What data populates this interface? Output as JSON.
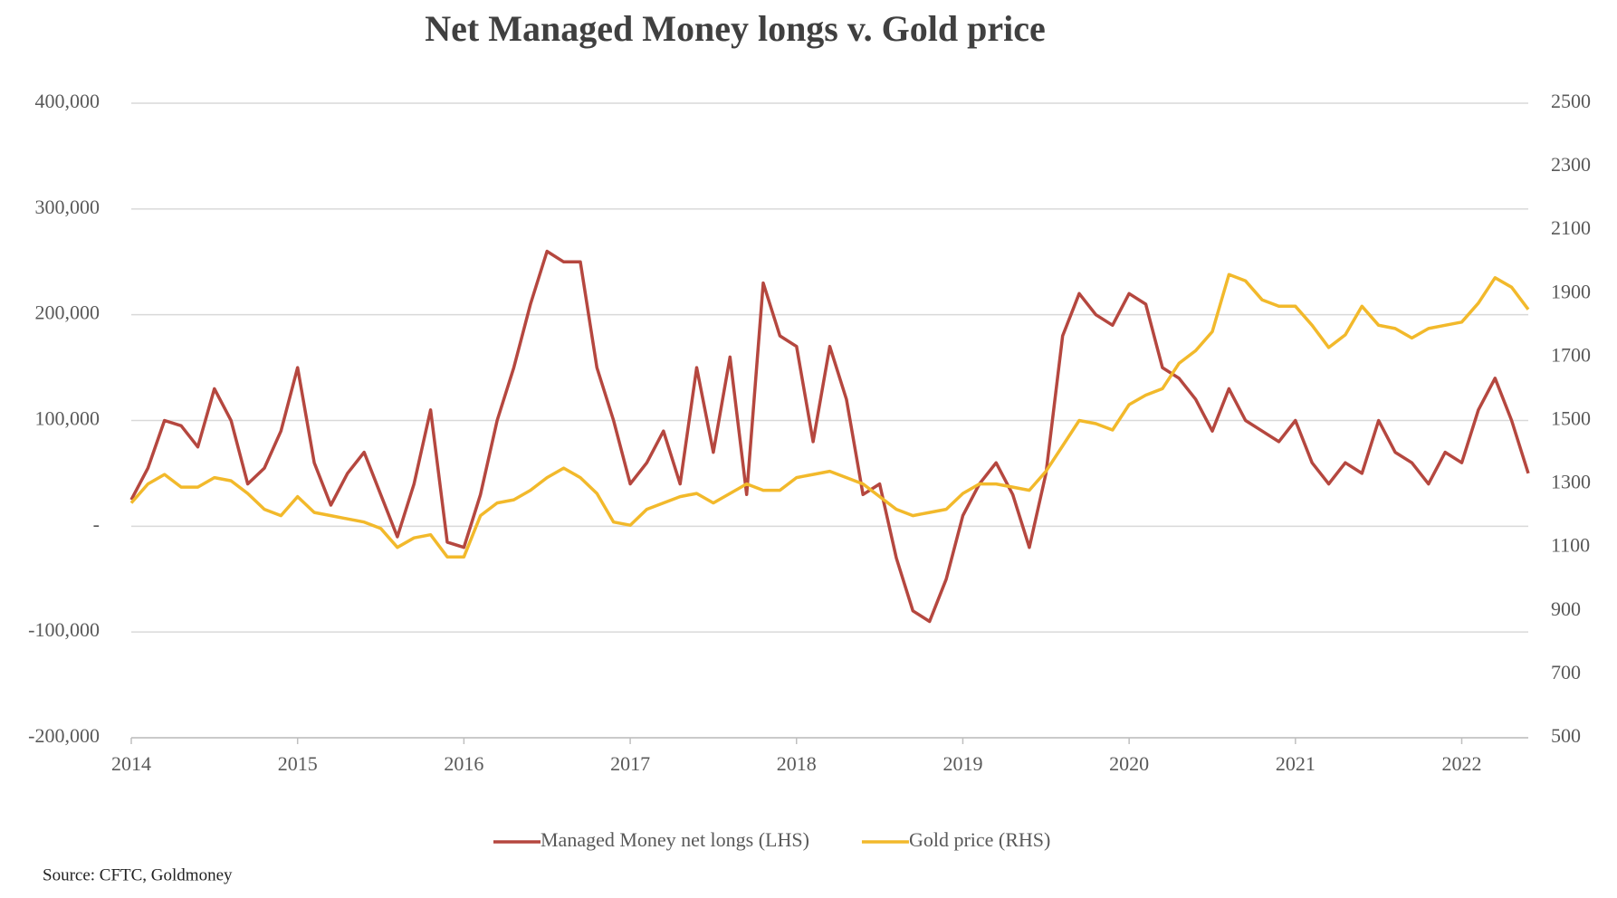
{
  "chart_data": {
    "type": "line",
    "title": "Net Managed Money longs v. Gold price",
    "source": "Source: CFTC, Goldmoney",
    "x": [
      2014.0,
      2014.1,
      2014.2,
      2014.3,
      2014.4,
      2014.5,
      2014.6,
      2014.7,
      2014.8,
      2014.9,
      2015.0,
      2015.1,
      2015.2,
      2015.3,
      2015.4,
      2015.5,
      2015.6,
      2015.7,
      2015.8,
      2015.9,
      2016.0,
      2016.1,
      2016.2,
      2016.3,
      2016.4,
      2016.5,
      2016.6,
      2016.7,
      2016.8,
      2016.9,
      2017.0,
      2017.1,
      2017.2,
      2017.3,
      2017.4,
      2017.5,
      2017.6,
      2017.7,
      2017.8,
      2017.9,
      2018.0,
      2018.1,
      2018.2,
      2018.3,
      2018.4,
      2018.5,
      2018.6,
      2018.7,
      2018.8,
      2018.9,
      2019.0,
      2019.1,
      2019.2,
      2019.3,
      2019.4,
      2019.5,
      2019.6,
      2019.7,
      2019.8,
      2019.9,
      2020.0,
      2020.1,
      2020.2,
      2020.3,
      2020.4,
      2020.5,
      2020.6,
      2020.7,
      2020.8,
      2020.9,
      2021.0,
      2021.1,
      2021.2,
      2021.3,
      2021.4,
      2021.5,
      2021.6,
      2021.7,
      2021.8,
      2021.9,
      2022.0,
      2022.1,
      2022.2,
      2022.3,
      2022.4
    ],
    "series": [
      {
        "name": "Managed Money net longs (LHS)",
        "color": "#b5473f",
        "axis": "y",
        "values": [
          25000,
          55000,
          100000,
          95000,
          75000,
          130000,
          100000,
          40000,
          55000,
          90000,
          150000,
          60000,
          20000,
          50000,
          70000,
          30000,
          -10000,
          40000,
          110000,
          -15000,
          -20000,
          30000,
          100000,
          150000,
          210000,
          260000,
          250000,
          250000,
          150000,
          100000,
          40000,
          60000,
          90000,
          40000,
          150000,
          70000,
          160000,
          30000,
          230000,
          180000,
          170000,
          80000,
          170000,
          120000,
          30000,
          40000,
          -30000,
          -80000,
          -90000,
          -50000,
          10000,
          40000,
          60000,
          30000,
          -20000,
          50000,
          180000,
          220000,
          200000,
          190000,
          220000,
          210000,
          150000,
          140000,
          120000,
          90000,
          130000,
          100000,
          90000,
          80000,
          100000,
          60000,
          40000,
          60000,
          50000,
          100000,
          70000,
          60000,
          40000,
          70000,
          60000,
          110000,
          140000,
          100000,
          50000
        ]
      },
      {
        "name": "Gold price (RHS)",
        "color": "#f2b92b",
        "axis": "y2",
        "values": [
          1240,
          1300,
          1330,
          1290,
          1290,
          1320,
          1310,
          1270,
          1220,
          1200,
          1260,
          1210,
          1200,
          1190,
          1180,
          1160,
          1100,
          1130,
          1140,
          1070,
          1070,
          1200,
          1240,
          1250,
          1280,
          1320,
          1350,
          1320,
          1270,
          1180,
          1170,
          1220,
          1240,
          1260,
          1270,
          1240,
          1270,
          1300,
          1280,
          1280,
          1320,
          1330,
          1340,
          1320,
          1300,
          1260,
          1220,
          1200,
          1210,
          1220,
          1270,
          1300,
          1300,
          1290,
          1280,
          1340,
          1420,
          1500,
          1490,
          1470,
          1550,
          1580,
          1600,
          1680,
          1720,
          1780,
          1960,
          1940,
          1880,
          1860,
          1860,
          1800,
          1730,
          1770,
          1860,
          1800,
          1790,
          1760,
          1790,
          1800,
          1810,
          1870,
          1950,
          1920,
          1850
        ]
      }
    ],
    "xlim": [
      2014,
      2022.4
    ],
    "xticks": [
      2014,
      2015,
      2016,
      2017,
      2018,
      2019,
      2020,
      2021,
      2022
    ],
    "ylim": [
      -200000,
      400000
    ],
    "yticks": [
      {
        "value": -200000,
        "label": "-200,000"
      },
      {
        "value": -100000,
        "label": "-100,000"
      },
      {
        "value": 0,
        "label": "-"
      },
      {
        "value": 100000,
        "label": "100,000"
      },
      {
        "value": 200000,
        "label": "200,000"
      },
      {
        "value": 300000,
        "label": "300,000"
      },
      {
        "value": 400000,
        "label": "400,000"
      }
    ],
    "y2lim": [
      500,
      2500
    ],
    "y2ticks": [
      500,
      700,
      900,
      1100,
      1300,
      1500,
      1700,
      1900,
      2100,
      2300,
      2500
    ],
    "grid": true,
    "legend": "bottom"
  }
}
